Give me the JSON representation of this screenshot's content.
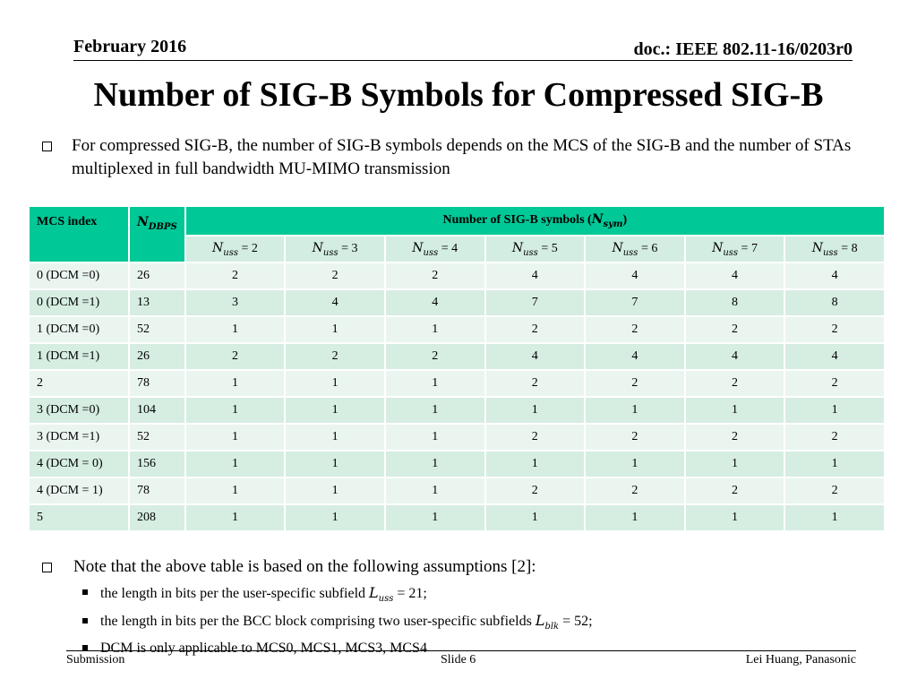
{
  "header": {
    "date": "February 2016",
    "doc": "doc.: IEEE 802.11-16/0203r0"
  },
  "title": "Number of SIG-B Symbols for Compressed SIG-B",
  "intro": "For compressed SIG-B, the number of SIG-B symbols depends on the MCS of the SIG-B and the number of STAs multiplexed in full bandwidth MU-MIMO transmission",
  "table": {
    "mcs_header": "MCS index",
    "ndbps_header": "N",
    "ndbps_sub": "DBPS",
    "nsym_header": "Number of SIG-B symbols (",
    "nsym_var": "N",
    "nsym_sub": "sym",
    "nsym_close": ")",
    "nuss_var": "N",
    "nuss_sub": "uss",
    "nuss_values": [
      " = 2",
      " = 3",
      " = 4",
      " = 5",
      " = 6",
      " = 7",
      " = 8"
    ],
    "rows": [
      {
        "mcs": "0 (DCM =0)",
        "ndbps": "26",
        "vals": [
          "2",
          "2",
          "2",
          "4",
          "4",
          "4",
          "4"
        ]
      },
      {
        "mcs": "0 (DCM =1)",
        "ndbps": "13",
        "vals": [
          "3",
          "4",
          "4",
          "7",
          "7",
          "8",
          "8"
        ]
      },
      {
        "mcs": "1 (DCM =0)",
        "ndbps": "52",
        "vals": [
          "1",
          "1",
          "1",
          "2",
          "2",
          "2",
          "2"
        ]
      },
      {
        "mcs": "1 (DCM =1)",
        "ndbps": "26",
        "vals": [
          "2",
          "2",
          "2",
          "4",
          "4",
          "4",
          "4"
        ]
      },
      {
        "mcs": "2",
        "ndbps": "78",
        "vals": [
          "1",
          "1",
          "1",
          "2",
          "2",
          "2",
          "2"
        ]
      },
      {
        "mcs": "3 (DCM =0)",
        "ndbps": "104",
        "vals": [
          "1",
          "1",
          "1",
          "1",
          "1",
          "1",
          "1"
        ]
      },
      {
        "mcs": "3 (DCM =1)",
        "ndbps": "52",
        "vals": [
          "1",
          "1",
          "1",
          "2",
          "2",
          "2",
          "2"
        ]
      },
      {
        "mcs": "4 (DCM = 0)",
        "ndbps": "156",
        "vals": [
          "1",
          "1",
          "1",
          "1",
          "1",
          "1",
          "1"
        ]
      },
      {
        "mcs": "4 (DCM = 1)",
        "ndbps": "78",
        "vals": [
          "1",
          "1",
          "1",
          "2",
          "2",
          "2",
          "2"
        ]
      },
      {
        "mcs": "5",
        "ndbps": "208",
        "vals": [
          "1",
          "1",
          "1",
          "1",
          "1",
          "1",
          "1"
        ]
      }
    ]
  },
  "note": "Note that the above table is based on the following assumptions [2]:",
  "assumptions": {
    "a1_text": "the length in bits per the user-specific subfield ",
    "a1_var": "L",
    "a1_sub": "uss",
    "a1_val": " = 21;",
    "a2_text": "the length in bits per the BCC block comprising two user-specific subfields ",
    "a2_var": "L",
    "a2_sub": "blk",
    "a2_val": " = 52;",
    "a3_text": "DCM is only applicable to MCS0, MCS1, MCS3, MCS4"
  },
  "footer": {
    "left": "Submission",
    "center": "Slide 6",
    "right": "Lei Huang, Panasonic"
  },
  "colors": {
    "header_green": "#00c896",
    "row_dark": "#d6ede2",
    "row_light": "#eaf5f0"
  }
}
